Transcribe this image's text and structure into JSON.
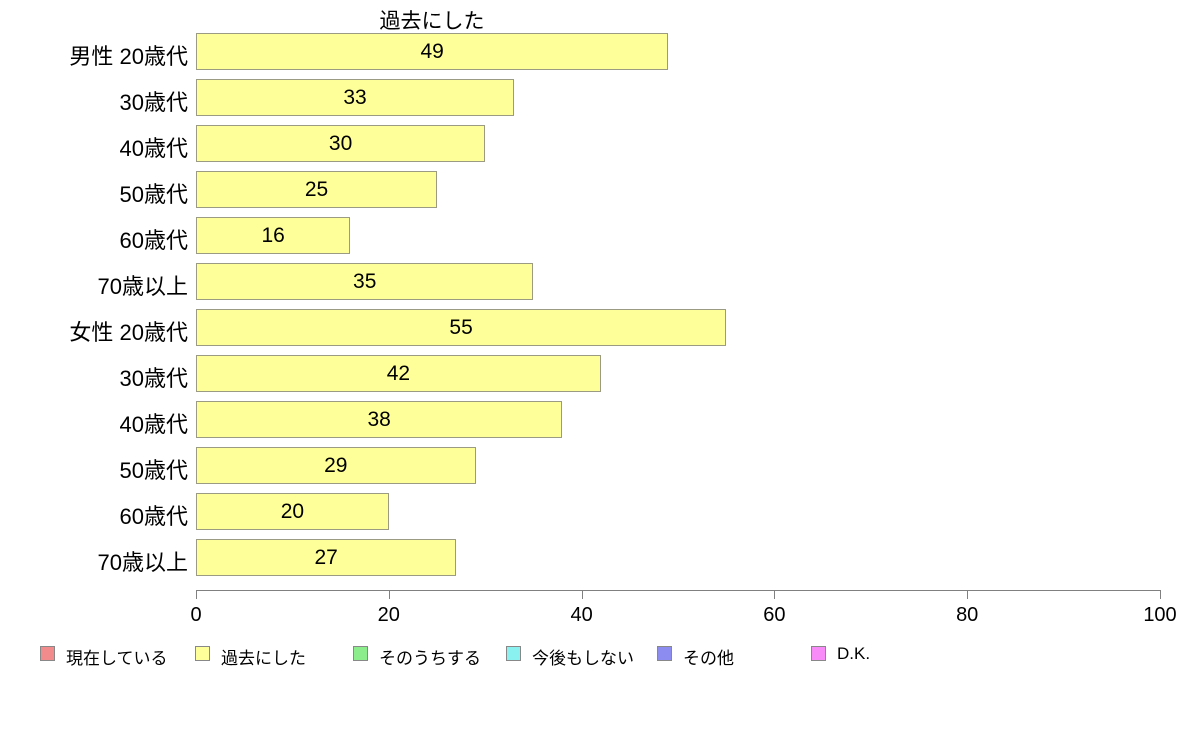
{
  "chart_data": {
    "type": "bar",
    "orientation": "horizontal",
    "title": "過去にした",
    "categories": [
      "男性 20歳代",
      "30歳代",
      "40歳代",
      "50歳代",
      "60歳代",
      "70歳以上",
      "女性 20歳代",
      "30歳代",
      "40歳代",
      "50歳代",
      "60歳代",
      "70歳以上"
    ],
    "values": [
      49,
      33,
      30,
      25,
      16,
      35,
      55,
      42,
      38,
      29,
      20,
      27
    ],
    "xlabel": "",
    "ylabel": "",
    "xlim": [
      0,
      100
    ],
    "x_ticks": [
      0,
      20,
      40,
      60,
      80,
      100
    ],
    "grid": false,
    "bar_fill_color": "#ffff99",
    "bar_border_color": "#9b9b84",
    "axis_color": "#808080",
    "legend_position": "bottom",
    "legend": [
      {
        "label": "現在している",
        "color": "#f28b8b"
      },
      {
        "label": "過去にした",
        "color": "#ffff99"
      },
      {
        "label": "そのうちする",
        "color": "#8bed8b"
      },
      {
        "label": "今後もしない",
        "color": "#8bf0f0"
      },
      {
        "label": "その他",
        "color": "#8b8bf0"
      },
      {
        "label": "D.K.",
        "color": "#f98bf9"
      }
    ]
  }
}
